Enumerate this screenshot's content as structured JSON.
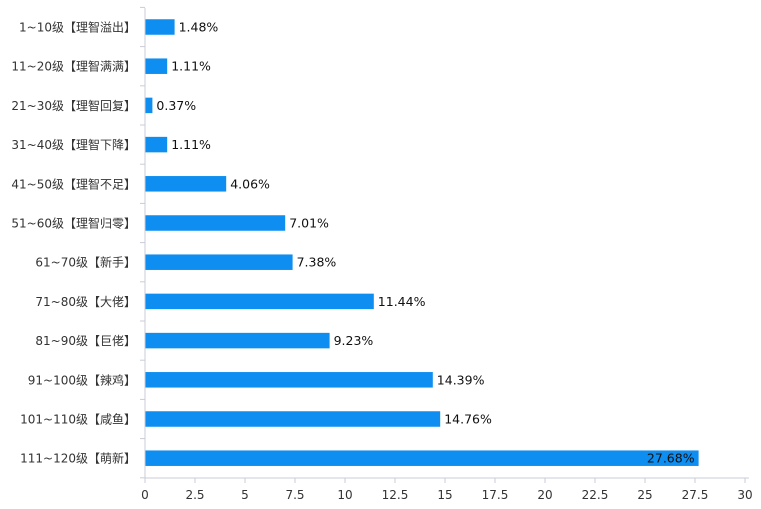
{
  "chart_data": {
    "type": "bar",
    "orientation": "horizontal",
    "categories": [
      "1~10级【理智溢出】",
      "11~20级【理智满满】",
      "21~30级【理智回复】",
      "31~40级【理智下降】",
      "41~50级【理智不足】",
      "51~60级【理智归零】",
      "61~70级【新手】",
      "71~80级【大佬】",
      "81~90级【巨佬】",
      "91~100级【辣鸡】",
      "101~110级【咸鱼】",
      "111~120级【萌新】"
    ],
    "values": [
      1.48,
      1.11,
      0.37,
      1.11,
      4.06,
      7.01,
      7.38,
      11.44,
      9.23,
      14.39,
      14.76,
      27.68
    ],
    "value_labels": [
      "1.48%",
      "1.11%",
      "0.37%",
      "1.11%",
      "4.06%",
      "7.01%",
      "7.38%",
      "11.44%",
      "9.23%",
      "14.39%",
      "14.76%",
      "27.68%"
    ],
    "xlim": [
      0,
      30
    ],
    "x_ticks": [
      0,
      2.5,
      5,
      7.5,
      10,
      12.5,
      15,
      17.5,
      20,
      22.5,
      25,
      27.5,
      30
    ],
    "x_tick_labels": [
      "0",
      "2.5",
      "5",
      "7.5",
      "10",
      "12.5",
      "15",
      "17.5",
      "20",
      "22.5",
      "25",
      "27.5",
      "30"
    ],
    "title": "",
    "xlabel": "",
    "ylabel": "",
    "grid": false,
    "colors": {
      "bar": "#0d8ef0",
      "axis": "#c8ccd8",
      "text": "#333333"
    }
  }
}
